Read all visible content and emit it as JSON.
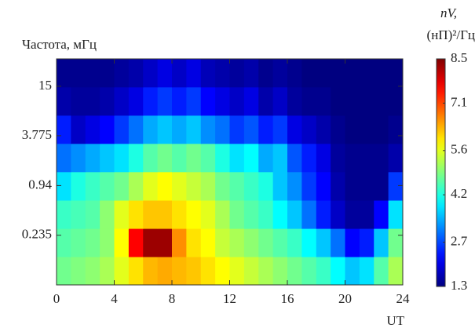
{
  "chart_data": {
    "type": "heatmap",
    "y_label": "Частота, мГц",
    "x_label": "UT",
    "colorbar_label": [
      "nV,",
      "(нП)²/Гц"
    ],
    "colormap": "jet",
    "xlim": [
      0,
      24
    ],
    "xticks": [
      0,
      4,
      8,
      12,
      16,
      20,
      24
    ],
    "ylim": [
      0.0588,
      32.2
    ],
    "yticks": [
      15,
      3.775,
      0.94,
      0.235
    ],
    "log_y": true,
    "clim": [
      1.3,
      8.5
    ],
    "cticks": [
      8.5,
      7.1,
      5.6,
      4.2,
      2.7,
      1.3
    ],
    "x": [
      0.5,
      1.5,
      2.5,
      3.5,
      4.5,
      5.5,
      6.5,
      7.5,
      8.5,
      9.5,
      10.5,
      11.5,
      12.5,
      13.5,
      14.5,
      15.5,
      16.5,
      17.5,
      18.5,
      19.5,
      20.5,
      21.5,
      22.5,
      23.5
    ],
    "y": [
      0.087,
      0.192,
      0.42,
      0.93,
      2.05,
      4.5,
      9.9,
      21.8
    ],
    "z": [
      [
        4.8,
        4.9,
        5.0,
        5.2,
        5.6,
        6.0,
        6.3,
        6.4,
        6.3,
        6.2,
        6.0,
        5.8,
        5.6,
        5.4,
        5.2,
        5.0,
        4.8,
        4.6,
        4.4,
        4.0,
        3.6,
        3.8,
        4.6,
        5.2
      ],
      [
        4.6,
        4.7,
        4.8,
        5.0,
        5.8,
        7.6,
        8.3,
        8.3,
        6.6,
        6.0,
        5.8,
        5.4,
        5.2,
        5.0,
        4.8,
        4.6,
        4.4,
        4.0,
        3.6,
        3.0,
        2.2,
        2.4,
        3.6,
        4.8
      ],
      [
        4.4,
        4.5,
        4.6,
        5.0,
        5.6,
        6.0,
        6.2,
        6.2,
        6.0,
        5.8,
        5.6,
        5.2,
        4.8,
        4.6,
        4.4,
        4.0,
        3.6,
        3.0,
        2.4,
        1.8,
        1.5,
        1.5,
        2.2,
        3.8
      ],
      [
        3.8,
        4.2,
        4.4,
        4.6,
        4.8,
        5.2,
        5.6,
        5.8,
        5.6,
        5.4,
        5.2,
        4.8,
        4.6,
        4.4,
        4.2,
        3.6,
        3.2,
        2.6,
        2.2,
        1.6,
        1.4,
        1.4,
        1.4,
        2.6
      ],
      [
        3.0,
        3.2,
        3.4,
        3.6,
        3.8,
        4.2,
        4.6,
        4.8,
        4.6,
        4.8,
        4.6,
        4.2,
        3.8,
        4.0,
        3.4,
        3.6,
        2.8,
        2.4,
        2.0,
        1.5,
        1.4,
        1.4,
        1.4,
        1.6
      ],
      [
        2.4,
        1.8,
        2.0,
        2.2,
        2.6,
        3.0,
        3.4,
        3.6,
        3.4,
        3.6,
        3.2,
        3.0,
        2.6,
        2.8,
        2.4,
        2.6,
        2.0,
        1.8,
        1.6,
        1.4,
        1.3,
        1.3,
        1.3,
        1.4
      ],
      [
        1.6,
        1.5,
        1.5,
        1.6,
        1.8,
        2.0,
        2.4,
        2.6,
        2.4,
        2.6,
        2.2,
        2.0,
        1.8,
        2.0,
        1.6,
        1.8,
        1.5,
        1.4,
        1.4,
        1.3,
        1.3,
        1.3,
        1.3,
        1.3
      ],
      [
        1.4,
        1.4,
        1.4,
        1.4,
        1.5,
        1.6,
        1.8,
        2.0,
        1.8,
        2.0,
        1.7,
        1.6,
        1.5,
        1.6,
        1.4,
        1.5,
        1.4,
        1.3,
        1.3,
        1.3,
        1.3,
        1.3,
        1.3,
        1.3
      ]
    ]
  }
}
